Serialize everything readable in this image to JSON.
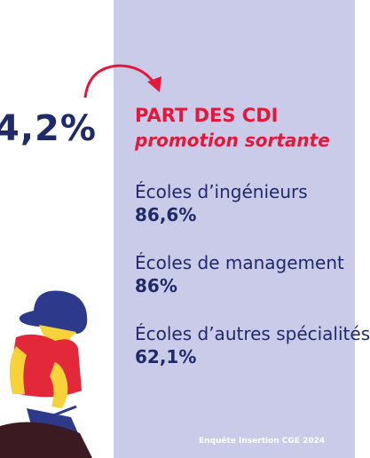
{
  "headline_value": "4,2%",
  "title": "PART DES CDI",
  "subtitle": "promotion sortante",
  "items": [
    {
      "label": "Écoles d’ingénieurs",
      "value": "86,6%"
    },
    {
      "label": "Écoles de management",
      "value": "86%"
    },
    {
      "label": "Écoles d’autres spécialités",
      "value": "62,1%"
    }
  ],
  "footer": "Enquête Insertion CGE 2024",
  "colors": {
    "accent_red": "#e3183a",
    "navy": "#1f2a6b",
    "panel": "#c9cbe8"
  }
}
